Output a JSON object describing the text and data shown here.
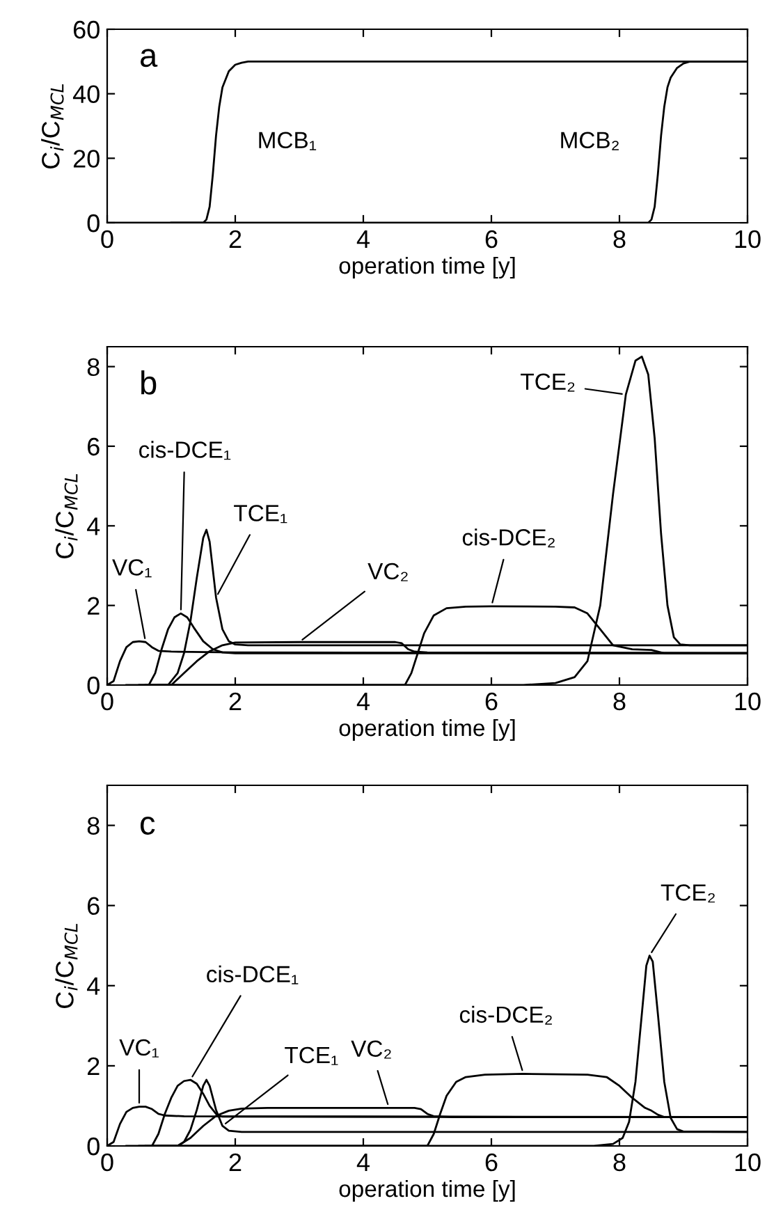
{
  "chart_data": [
    {
      "type": "line",
      "title": "a",
      "xlabel": "operation time [y]",
      "ylabel": "C$_{i}$/C$_{MCL}$",
      "xlim": [
        0,
        10
      ],
      "ylim": [
        0,
        60
      ],
      "xticks": [
        0,
        2,
        4,
        6,
        8,
        10
      ],
      "yticks": [
        0,
        20,
        40,
        60
      ],
      "grid": false,
      "legend": false,
      "series": [
        {
          "color": "#000000",
          "x": [
            0,
            1.5,
            1.55,
            1.6,
            1.65,
            1.7,
            1.75,
            1.8,
            1.9,
            2.0,
            2.1,
            2.2,
            2.4,
            10
          ],
          "values": [
            0,
            0,
            1,
            5,
            15,
            27,
            36,
            42,
            47,
            49,
            49.6,
            50,
            50,
            50
          ]
        },
        {
          "color": "#000000",
          "x": [
            1.0,
            8.45,
            8.5,
            8.55,
            8.6,
            8.65,
            8.7,
            8.75,
            8.8,
            8.9,
            9.0,
            9.1,
            9.3,
            10
          ],
          "values": [
            0,
            0,
            1,
            5,
            15,
            27,
            36,
            42,
            45,
            48,
            49.4,
            50,
            50,
            50
          ]
        }
      ],
      "annotations": [
        {
          "text": "MCB₁",
          "x": 1.68,
          "y": 25
        },
        {
          "text": "MCB₂",
          "x": 8.55,
          "y": 25
        }
      ]
    },
    {
      "type": "line",
      "title": "b",
      "xlabel": "operation time [y]",
      "ylabel": "C$_{i}$/C$_{MCL}$",
      "xlim": [
        0,
        10
      ],
      "ylim": [
        0,
        8.5
      ],
      "xticks": [
        0,
        2,
        4,
        6,
        8,
        10
      ],
      "yticks": [
        0,
        2,
        4,
        6,
        8
      ],
      "grid": false,
      "legend": false,
      "series": [
        {
          "color": "#000000",
          "x": [
            0,
            0.1,
            0.2,
            0.3,
            0.4,
            0.5,
            0.6,
            0.7,
            0.8,
            1.0,
            2.0,
            10
          ],
          "values": [
            0,
            0.1,
            0.6,
            0.95,
            1.08,
            1.1,
            1.08,
            0.95,
            0.86,
            0.84,
            0.82,
            0.8
          ]
        },
        {
          "color": "#000000",
          "x": [
            0.3,
            0.65,
            0.75,
            0.85,
            0.95,
            1.05,
            1.15,
            1.25,
            1.35,
            1.5,
            1.65,
            1.8,
            2.0,
            10
          ],
          "values": [
            0,
            0,
            0.3,
            0.9,
            1.4,
            1.7,
            1.8,
            1.7,
            1.45,
            1.1,
            0.9,
            0.82,
            0.8,
            0.8
          ]
        },
        {
          "color": "#000000",
          "x": [
            0.5,
            0.95,
            1.1,
            1.2,
            1.3,
            1.4,
            1.5,
            1.55,
            1.6,
            1.7,
            1.8,
            1.9,
            2.0,
            2.2,
            10
          ],
          "values": [
            0,
            0,
            0.3,
            0.8,
            1.6,
            2.7,
            3.7,
            3.9,
            3.6,
            2.2,
            1.4,
            1.1,
            1.02,
            1.0,
            1.0
          ]
        },
        {
          "color": "#000000",
          "x": [
            0.6,
            1.0,
            1.2,
            1.4,
            1.6,
            1.8,
            2.0,
            3.0,
            4.5,
            4.6,
            4.7,
            4.8,
            5.0,
            10
          ],
          "values": [
            0,
            0,
            0.3,
            0.6,
            0.85,
            1.0,
            1.07,
            1.08,
            1.08,
            1.05,
            0.9,
            0.84,
            0.82,
            0.8
          ]
        },
        {
          "color": "#000000",
          "x": [
            0.7,
            4.65,
            4.75,
            4.85,
            4.95,
            5.1,
            5.3,
            5.6,
            6.0,
            7.0,
            7.3,
            7.5,
            7.7,
            7.9,
            8.2,
            8.5,
            8.7,
            10
          ],
          "values": [
            0,
            0,
            0.3,
            0.8,
            1.3,
            1.75,
            1.93,
            1.97,
            1.98,
            1.97,
            1.95,
            1.8,
            1.4,
            1.0,
            0.9,
            0.88,
            0.8,
            0.8
          ]
        },
        {
          "color": "#000000",
          "x": [
            0.8,
            6.5,
            7.0,
            7.3,
            7.5,
            7.7,
            7.9,
            8.1,
            8.25,
            8.35,
            8.45,
            8.55,
            8.65,
            8.75,
            8.85,
            8.95,
            9.1,
            10
          ],
          "values": [
            0,
            0,
            0.05,
            0.2,
            0.6,
            2.0,
            4.8,
            7.3,
            8.15,
            8.25,
            7.8,
            6.2,
            3.8,
            2.0,
            1.2,
            1.02,
            1.0,
            1.0
          ]
        }
      ],
      "annotations": [
        {
          "text": "VC₁",
          "x": 0.6,
          "y": 1.08
        },
        {
          "text": "cis-DCE₁",
          "x": 1.15,
          "y": 1.8
        },
        {
          "text": "TCE₁",
          "x": 1.7,
          "y": 2.2
        },
        {
          "text": "VC₂",
          "x": 3.0,
          "y": 1.08
        },
        {
          "text": "cis-DCE₂",
          "x": 6.0,
          "y": 1.98
        },
        {
          "text": "TCE₂",
          "x": 8.1,
          "y": 7.3
        }
      ]
    },
    {
      "type": "line",
      "title": "c",
      "xlabel": "operation time [y]",
      "ylabel": "C$_{i}$/C$_{MCL}$",
      "xlim": [
        0,
        10
      ],
      "ylim": [
        0,
        9
      ],
      "xticks": [
        0,
        2,
        4,
        6,
        8,
        10
      ],
      "yticks": [
        0,
        2,
        4,
        6,
        8
      ],
      "grid": false,
      "legend": false,
      "series": [
        {
          "color": "#000000",
          "x": [
            0,
            0.1,
            0.2,
            0.3,
            0.4,
            0.5,
            0.6,
            0.7,
            0.8,
            0.9,
            1.2,
            10
          ],
          "values": [
            0,
            0.1,
            0.55,
            0.85,
            0.95,
            0.98,
            0.98,
            0.92,
            0.8,
            0.76,
            0.74,
            0.72
          ]
        },
        {
          "color": "#000000",
          "x": [
            0.3,
            0.7,
            0.8,
            0.9,
            1.0,
            1.1,
            1.2,
            1.3,
            1.4,
            1.5,
            1.6,
            1.7,
            1.8,
            10
          ],
          "values": [
            0,
            0,
            0.3,
            0.8,
            1.2,
            1.5,
            1.62,
            1.65,
            1.55,
            1.3,
            1.0,
            0.8,
            0.73,
            0.72
          ]
        },
        {
          "color": "#000000",
          "x": [
            0.5,
            1.1,
            1.2,
            1.3,
            1.4,
            1.5,
            1.55,
            1.6,
            1.7,
            1.8,
            1.9,
            2.1,
            10
          ],
          "values": [
            0,
            0,
            0.1,
            0.4,
            0.9,
            1.5,
            1.65,
            1.5,
            0.9,
            0.5,
            0.38,
            0.35,
            0.35
          ]
        },
        {
          "color": "#000000",
          "x": [
            0.6,
            1.1,
            1.3,
            1.5,
            1.7,
            1.9,
            2.1,
            2.5,
            4.4,
            4.8,
            4.9,
            5.0,
            5.1,
            5.4,
            10
          ],
          "values": [
            0,
            0,
            0.2,
            0.5,
            0.75,
            0.88,
            0.93,
            0.95,
            0.95,
            0.95,
            0.92,
            0.8,
            0.74,
            0.72,
            0.72
          ]
        },
        {
          "color": "#000000",
          "x": [
            0.7,
            5.0,
            5.1,
            5.2,
            5.3,
            5.45,
            5.6,
            5.9,
            6.5,
            7.5,
            7.8,
            8.0,
            8.2,
            8.4,
            8.5,
            8.6,
            8.7,
            10
          ],
          "values": [
            0,
            0,
            0.3,
            0.8,
            1.25,
            1.6,
            1.72,
            1.78,
            1.8,
            1.78,
            1.72,
            1.5,
            1.2,
            0.95,
            0.88,
            0.78,
            0.72,
            0.72
          ]
        },
        {
          "color": "#000000",
          "x": [
            0.8,
            7.6,
            7.9,
            8.05,
            8.15,
            8.25,
            8.35,
            8.42,
            8.47,
            8.52,
            8.6,
            8.7,
            8.8,
            8.9,
            9.0,
            10
          ],
          "values": [
            0,
            0,
            0.05,
            0.2,
            0.6,
            1.6,
            3.3,
            4.5,
            4.75,
            4.6,
            3.3,
            1.6,
            0.7,
            0.42,
            0.36,
            0.35
          ]
        }
      ],
      "annotations": [
        {
          "text": "VC₁",
          "x": 0.5,
          "y": 0.98
        },
        {
          "text": "cis-DCE₁",
          "x": 1.3,
          "y": 1.65
        },
        {
          "text": "TCE₁",
          "x": 1.8,
          "y": 0.5
        },
        {
          "text": "VC₂",
          "x": 4.4,
          "y": 0.95
        },
        {
          "text": "cis-DCE₂",
          "x": 6.5,
          "y": 1.8
        },
        {
          "text": "TCE₂",
          "x": 8.47,
          "y": 4.75
        }
      ]
    }
  ]
}
